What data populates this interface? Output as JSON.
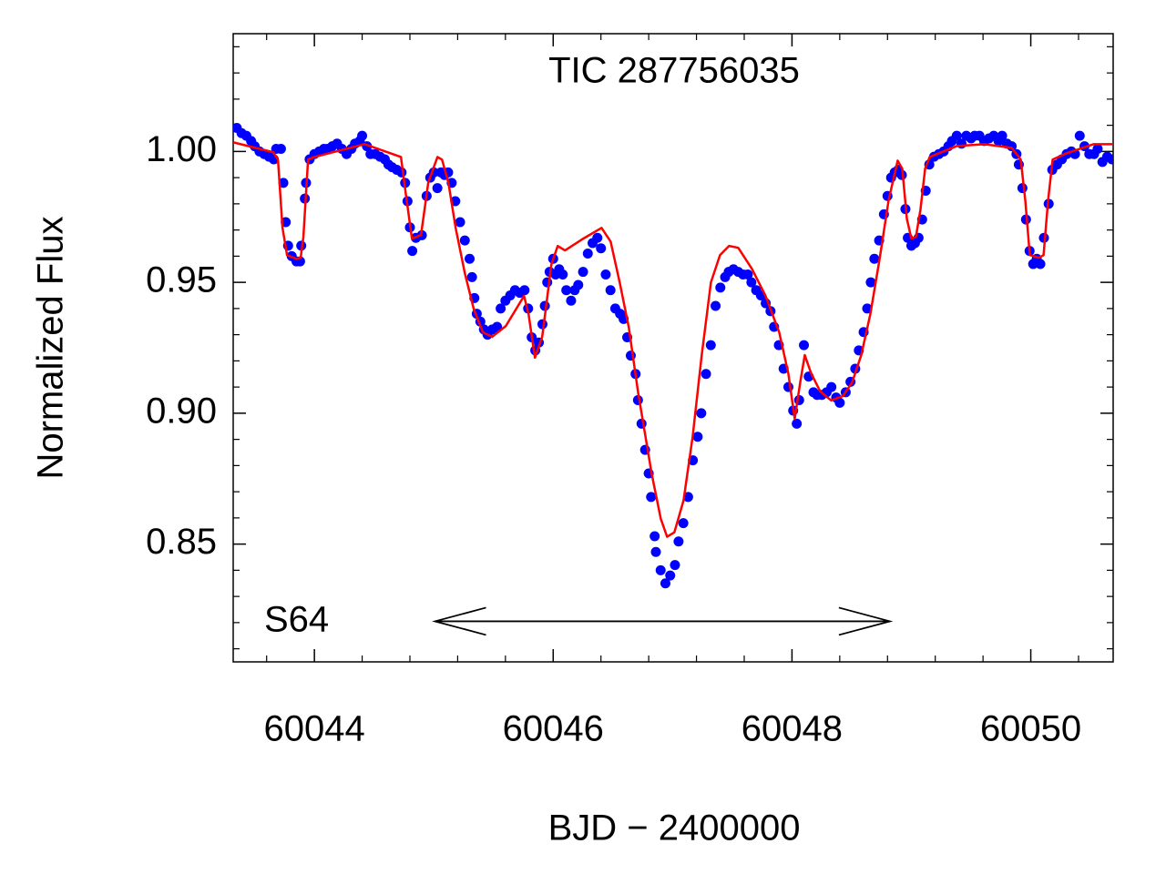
{
  "chart_data": {
    "type": "scatter",
    "title": "TIC 287756035",
    "x_label": "BJD − 2400000",
    "y_label": "Normalized Flux",
    "xlim": [
      60043.32,
      60050.69
    ],
    "ylim": [
      0.805,
      1.045
    ],
    "xticks": [
      60044,
      60046,
      60048,
      60050
    ],
    "yticks": [
      0.85,
      {
        "value": 0.9,
        "label": "0.90"
      },
      0.95,
      {
        "value": 1,
        "label": "1.00"
      }
    ],
    "grid": false,
    "annotations": [
      {
        "text": "S64",
        "arrow_x": [
          60045.01,
          60048.82
        ],
        "arrow_y": 0.8205
      }
    ],
    "series": [
      {
        "type": "scatter",
        "color": "#0000ff",
        "x": [
          60043.35,
          60043.39,
          60043.43,
          60043.47,
          60043.5,
          60043.54,
          60043.58,
          60043.62,
          60043.66,
          60043.68,
          60043.72,
          60043.74,
          60043.76,
          60043.78,
          60043.81,
          60043.85,
          60043.88,
          60043.89,
          60043.92,
          60043.93,
          60043.96,
          60044.0,
          60044.04,
          60044.08,
          60044.11,
          60044.15,
          60044.19,
          60044.23,
          60044.27,
          60044.31,
          60044.34,
          60044.38,
          60044.4,
          60044.44,
          60044.47,
          60044.51,
          60044.55,
          60044.59,
          60044.62,
          60044.65,
          60044.69,
          60044.73,
          60044.76,
          60044.78,
          60044.8,
          60044.82,
          60044.85,
          60044.9,
          60044.94,
          60044.97,
          60045.0,
          60045.03,
          60045.06,
          60045.09,
          60045.12,
          60045.15,
          60045.18,
          60045.22,
          60045.26,
          60045.3,
          60045.32,
          60045.34,
          60045.36,
          60045.39,
          60045.42,
          60045.45,
          60045.49,
          60045.53,
          60045.56,
          60045.6,
          60045.64,
          60045.68,
          60045.72,
          60045.76,
          60045.79,
          60045.82,
          60045.85,
          60045.88,
          60045.91,
          60045.93,
          60045.95,
          60045.97,
          60046.0,
          60046.02,
          60046.05,
          60046.08,
          60046.11,
          60046.15,
          60046.18,
          60046.21,
          60046.25,
          60046.29,
          60046.33,
          60046.37,
          60046.4,
          60046.44,
          60046.48,
          60046.52,
          60046.56,
          60046.59,
          60046.62,
          60046.65,
          60046.69,
          60046.71,
          60046.74,
          60046.77,
          60046.8,
          60046.82,
          60046.85,
          60046.86,
          60046.9,
          60046.94,
          60046.98,
          60047.02,
          60047.05,
          60047.09,
          60047.13,
          60047.17,
          60047.21,
          60047.24,
          60047.28,
          60047.32,
          60047.36,
          60047.4,
          60047.44,
          60047.47,
          60047.51,
          60047.55,
          60047.59,
          60047.63,
          60047.66,
          60047.7,
          60047.74,
          60047.78,
          60047.82,
          60047.85,
          60047.89,
          60047.93,
          60047.97,
          60048.01,
          60048.04,
          60048.06,
          60048.1,
          60048.14,
          60048.18,
          60048.21,
          60048.25,
          60048.29,
          60048.33,
          60048.37,
          60048.4,
          60048.45,
          60048.49,
          60048.53,
          60048.56,
          60048.6,
          60048.63,
          60048.66,
          60048.69,
          60048.73,
          60048.77,
          60048.8,
          60048.83,
          60048.86,
          60048.89,
          60048.92,
          60048.95,
          60048.97,
          60049.0,
          60049.03,
          60049.06,
          60049.09,
          60049.12,
          60049.15,
          60049.19,
          60049.23,
          60049.27,
          60049.31,
          60049.34,
          60049.38,
          60049.42,
          60049.46,
          60049.5,
          60049.53,
          60049.57,
          60049.61,
          60049.65,
          60049.69,
          60049.73,
          60049.76,
          60049.8,
          60049.84,
          60049.88,
          60049.9,
          60049.93,
          60049.96,
          60049.99,
          60050.02,
          60050.05,
          60050.08,
          60050.11,
          60050.15,
          60050.18,
          60050.22,
          60050.26,
          60050.3,
          60050.34,
          60050.37,
          60050.41,
          60050.45,
          60050.49,
          60050.53,
          60050.56,
          60050.6,
          60050.64,
          60050.68
        ],
        "values": [
          1.009,
          1.007,
          1.006,
          1.004,
          1.002,
          1.0,
          0.999,
          0.998,
          0.997,
          1.001,
          1.001,
          0.988,
          0.973,
          0.964,
          0.96,
          0.958,
          0.958,
          0.964,
          0.982,
          0.988,
          0.997,
          0.999,
          1.0,
          1.001,
          1.001,
          1.002,
          1.003,
          1.001,
          0.999,
          1.001,
          1.003,
          1.004,
          1.006,
          1.002,
          0.999,
          0.999,
          0.998,
          0.997,
          0.995,
          0.994,
          0.993,
          0.992,
          0.988,
          0.981,
          0.971,
          0.962,
          0.967,
          0.968,
          0.983,
          0.99,
          0.992,
          0.986,
          0.992,
          0.991,
          0.992,
          0.988,
          0.981,
          0.973,
          0.966,
          0.959,
          0.952,
          0.944,
          0.938,
          0.935,
          0.932,
          0.93,
          0.932,
          0.933,
          0.94,
          0.943,
          0.945,
          0.947,
          0.946,
          0.947,
          0.94,
          0.929,
          0.924,
          0.927,
          0.934,
          0.941,
          0.95,
          0.954,
          0.959,
          0.953,
          0.955,
          0.953,
          0.947,
          0.943,
          0.947,
          0.949,
          0.954,
          0.961,
          0.965,
          0.967,
          0.963,
          0.953,
          0.947,
          0.94,
          0.938,
          0.936,
          0.929,
          0.922,
          0.915,
          0.905,
          0.896,
          0.886,
          0.877,
          0.868,
          0.853,
          0.847,
          0.84,
          0.835,
          0.838,
          0.842,
          0.851,
          0.858,
          0.868,
          0.882,
          0.891,
          0.9,
          0.915,
          0.926,
          0.941,
          0.948,
          0.952,
          0.954,
          0.955,
          0.954,
          0.953,
          0.953,
          0.95,
          0.947,
          0.945,
          0.942,
          0.939,
          0.933,
          0.926,
          0.917,
          0.91,
          0.901,
          0.896,
          0.905,
          0.926,
          0.914,
          0.908,
          0.907,
          0.907,
          0.908,
          0.91,
          0.906,
          0.904,
          0.908,
          0.912,
          0.917,
          0.924,
          0.931,
          0.94,
          0.95,
          0.959,
          0.966,
          0.976,
          0.983,
          0.99,
          0.992,
          0.993,
          0.991,
          0.978,
          0.967,
          0.964,
          0.965,
          0.967,
          0.974,
          0.985,
          0.995,
          0.998,
          0.999,
          1.0,
          1.002,
          1.004,
          1.006,
          1.003,
          1.006,
          1.005,
          1.006,
          1.006,
          1.004,
          1.005,
          1.006,
          1.004,
          1.006,
          1.003,
          1.002,
          0.999,
          0.995,
          0.986,
          0.974,
          0.962,
          0.957,
          0.959,
          0.957,
          0.967,
          0.98,
          0.993,
          0.995,
          0.997,
          0.999,
          1.0,
          0.999,
          1.006,
          1.002,
          0.999,
          0.999,
          1.001,
          0.996,
          0.998,
          0.997
        ]
      },
      {
        "type": "line",
        "color": "#ff0000",
        "x": [
          60043.321,
          60043.656,
          60043.695,
          60043.733,
          60043.771,
          60043.847,
          60043.885,
          60043.908,
          60043.947,
          60044.0,
          60044.42,
          60044.725,
          60044.763,
          60044.817,
          60044.893,
          60044.954,
          60045.031,
          60045.069,
          60045.122,
          60045.183,
          60045.26,
          60045.336,
          60045.412,
          60045.489,
          60045.603,
          60045.756,
          60045.794,
          60045.847,
          60045.908,
          60045.947,
          60045.985,
          60046.038,
          60046.099,
          60046.252,
          60046.405,
          60046.481,
          60046.557,
          60046.634,
          60046.71,
          60046.824,
          60046.901,
          60046.954,
          60047.015,
          60047.092,
          60047.168,
          60047.244,
          60047.321,
          60047.397,
          60047.473,
          60047.55,
          60047.664,
          60047.779,
          60047.893,
          60047.969,
          60048.023,
          60048.069,
          60048.107,
          60048.16,
          60048.237,
          60048.328,
          60048.427,
          60048.504,
          60048.58,
          60048.656,
          60048.733,
          60048.809,
          60048.885,
          60048.924,
          60048.962,
          60049.0,
          60049.038,
          60049.076,
          60049.115,
          60049.153,
          60049.382,
          60049.611,
          60049.84,
          60049.916,
          60049.954,
          60049.992,
          60050.069,
          60050.107,
          60050.145,
          60050.183,
          60050.298,
          60050.527,
          60050.69
        ],
        "values": [
          1.0035,
          0.9997,
          0.9969,
          0.9708,
          0.9604,
          0.959,
          0.9594,
          0.9674,
          0.9969,
          0.9979,
          1.0028,
          0.9979,
          0.9847,
          0.9667,
          0.9681,
          0.9882,
          0.9979,
          0.9969,
          0.9882,
          0.9708,
          0.9535,
          0.9396,
          0.9309,
          0.9292,
          0.9333,
          0.9448,
          0.9378,
          0.9212,
          0.9292,
          0.9431,
          0.9569,
          0.9639,
          0.9622,
          0.9667,
          0.9708,
          0.9656,
          0.95,
          0.9326,
          0.9083,
          0.8771,
          0.8597,
          0.8528,
          0.8545,
          0.8667,
          0.891,
          0.9222,
          0.95,
          0.9604,
          0.9639,
          0.9632,
          0.9552,
          0.9448,
          0.9309,
          0.9153,
          0.8979,
          0.9118,
          0.9222,
          0.9153,
          0.9083,
          0.9049,
          0.9066,
          0.9118,
          0.9222,
          0.9378,
          0.9587,
          0.9813,
          0.9965,
          0.9934,
          0.9743,
          0.9667,
          0.9674,
          0.9778,
          0.9934,
          0.9979,
          1.0021,
          1.0028,
          1.0014,
          0.9969,
          0.9813,
          0.9604,
          0.9594,
          0.9604,
          0.9813,
          0.9969,
          0.9993,
          1.0028,
          1.0028
        ]
      }
    ]
  }
}
